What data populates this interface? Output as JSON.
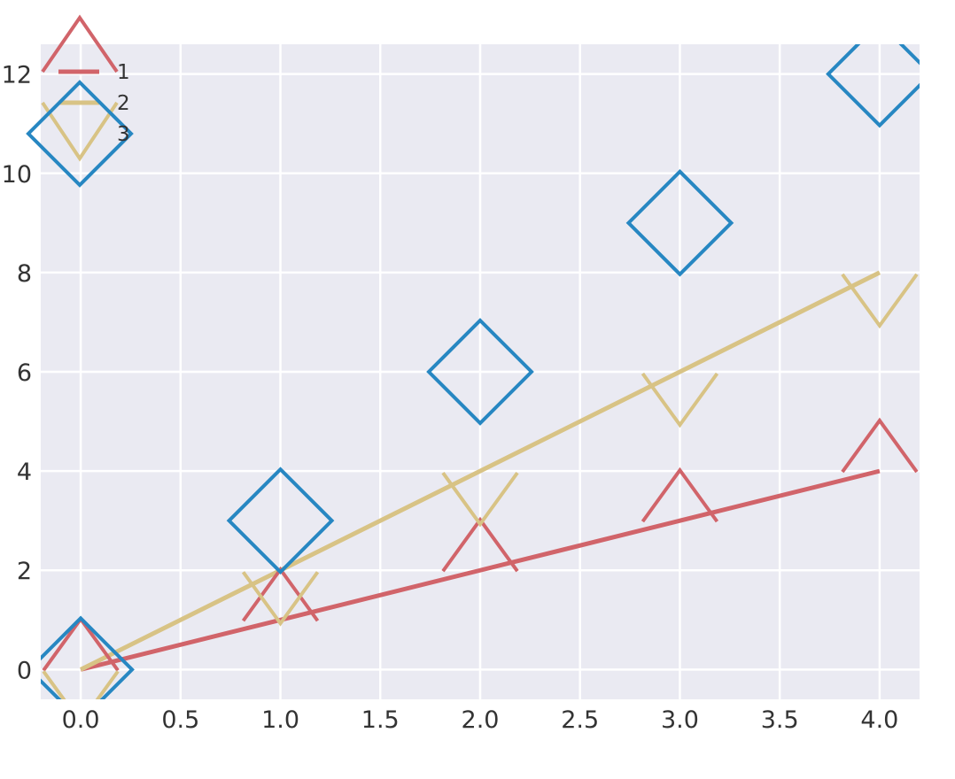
{
  "chart_data": {
    "type": "line",
    "title": "",
    "xlabel": "",
    "ylabel": "",
    "xlim": [
      -0.2,
      4.2
    ],
    "ylim": [
      -0.6,
      12.6
    ],
    "xticks": [
      0.0,
      0.5,
      1.0,
      1.5,
      2.0,
      2.5,
      3.0,
      3.5,
      4.0
    ],
    "yticks": [
      0,
      2,
      4,
      6,
      8,
      10,
      12
    ],
    "xtick_labels": [
      "0.0",
      "0.5",
      "1.0",
      "1.5",
      "2.0",
      "2.5",
      "3.0",
      "3.5",
      "4.0"
    ],
    "ytick_labels": [
      "0",
      "2",
      "4",
      "6",
      "8",
      "10",
      "12"
    ],
    "grid": true,
    "legend_position": "top-left",
    "x": [
      0,
      1,
      2,
      3,
      4
    ],
    "series": [
      {
        "name": "1",
        "values": [
          0,
          1,
          2,
          3,
          4
        ],
        "color": "#d1646a",
        "marker": "triangle-up",
        "line": true
      },
      {
        "name": "2",
        "values": [
          0,
          2,
          4,
          6,
          8
        ],
        "color": "#d8c385",
        "marker": "triangle-down",
        "line": true
      },
      {
        "name": "3",
        "values": [
          0,
          3,
          6,
          9,
          12
        ],
        "color": "#2787c2",
        "marker": "diamond",
        "line": false
      }
    ]
  }
}
